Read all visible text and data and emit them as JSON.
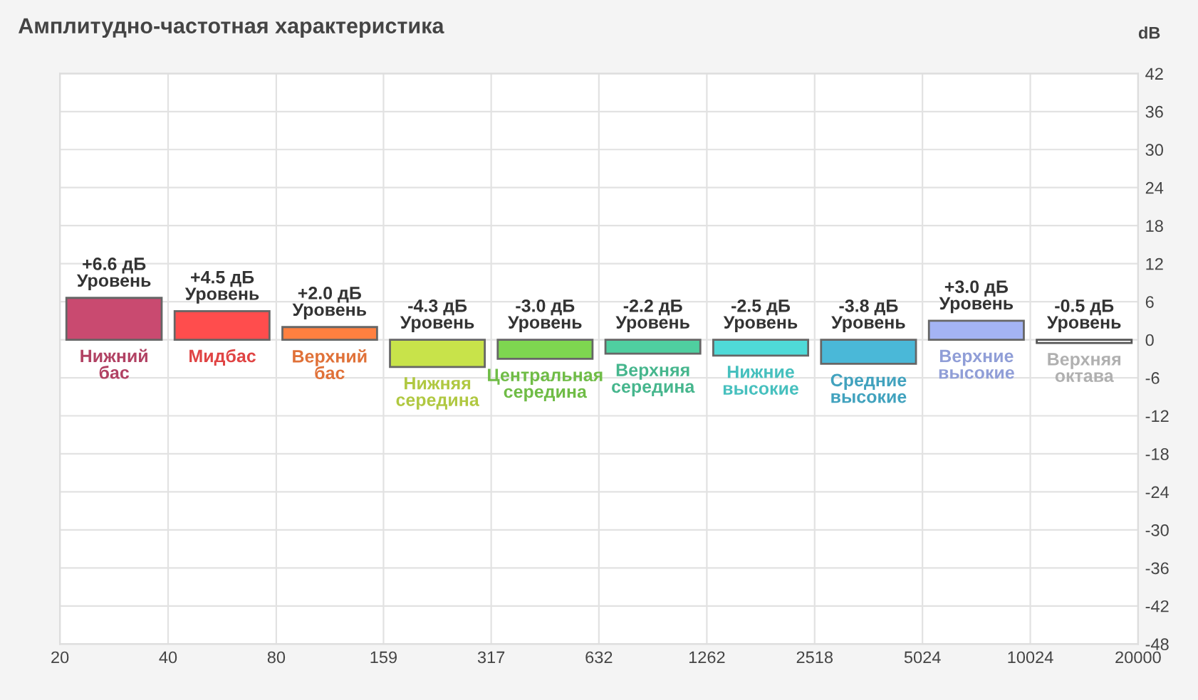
{
  "chart_data": {
    "type": "bar",
    "title": "Амплитудно-частотная характеристика",
    "ylabel": "dB",
    "x": [
      28.3,
      56.6,
      112.6,
      224.6,
      447.7,
      893.3,
      1782,
      3556,
      7097,
      14159
    ],
    "values": [
      6.6,
      4.5,
      2.0,
      -4.3,
      -3.0,
      -2.2,
      -2.5,
      -3.8,
      3.0,
      -0.5
    ],
    "colors": [
      "#c94a70",
      "#ff4d4d",
      "#ff8040",
      "#c8e34a",
      "#7ed650",
      "#4fcfa0",
      "#4fdad8",
      "#4ab8d8",
      "#a4b4f4",
      "#ffffff"
    ],
    "value_labels": [
      "+6.6 дБ\nУровень",
      "+4.5 дБ\nУровень",
      "+2.0 дБ\nУровень",
      "-4.3 дБ\nУровень",
      "-3.0 дБ\nУровень",
      "-2.2 дБ\nУровень",
      "-2.5 дБ\nУровень",
      "-3.8 дБ\nУровень",
      "+3.0 дБ\nУровень",
      "-0.5 дБ\nУровень"
    ],
    "annotations": [
      {
        "text": "Нижний бас",
        "x": 28.3,
        "y": 6.6
      },
      {
        "text": "Мидбас",
        "x": 56.6,
        "y": 4.5
      },
      {
        "text": "Верхний бас",
        "x": 112.6,
        "y": 2.0
      },
      {
        "text": "Нижняя середина",
        "x": 224.6,
        "y": -4.3
      },
      {
        "text": "Центральная середина",
        "x": 447.7,
        "y": -3.0
      },
      {
        "text": "Верхняя середина",
        "x": 893.3,
        "y": -2.2
      },
      {
        "text": "Нижние высокие",
        "x": 1782,
        "y": -2.5
      },
      {
        "text": "Средние высокие",
        "x": 3556,
        "y": -3.8
      },
      {
        "text": "Верхние высокие",
        "x": 7097,
        "y": 3.0
      },
      {
        "text": "Верхняя октава",
        "x": 14159,
        "y": -0.5
      }
    ],
    "log": "x",
    "xlim": [
      20,
      20000
    ],
    "xticks": [
      20,
      40,
      80,
      159,
      317,
      632,
      1262,
      2518,
      5024,
      10024,
      20000
    ],
    "ylim": [
      -48,
      42
    ],
    "yticks": [
      -48,
      -42,
      -36,
      -30,
      -24,
      -18,
      -12,
      -6,
      0,
      6,
      12,
      18,
      24,
      30,
      36,
      42
    ],
    "grid": true
  }
}
